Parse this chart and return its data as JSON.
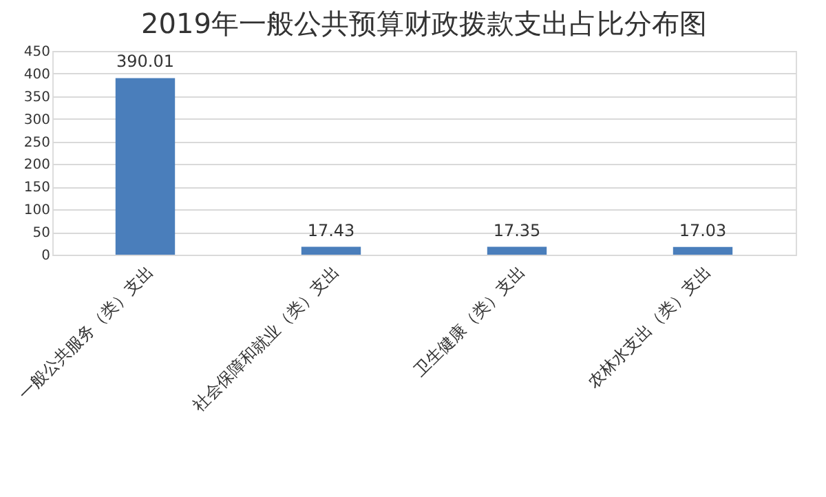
{
  "chart_data": {
    "type": "bar",
    "title": "2019年一般公共预算财政拨款支出占比分布图",
    "categories": [
      "一般公共服务（类）支出",
      "社会保障和就业（类）支出",
      "卫生健康（类）支出",
      "农林水支出（类）支出"
    ],
    "values": [
      390.01,
      17.43,
      17.35,
      17.03
    ],
    "color": "#4a7ebb",
    "ylim": [
      0,
      450
    ],
    "yticks": [
      0,
      50,
      100,
      150,
      200,
      250,
      300,
      350,
      400,
      450
    ],
    "grid": "y",
    "data_labels": true
  }
}
